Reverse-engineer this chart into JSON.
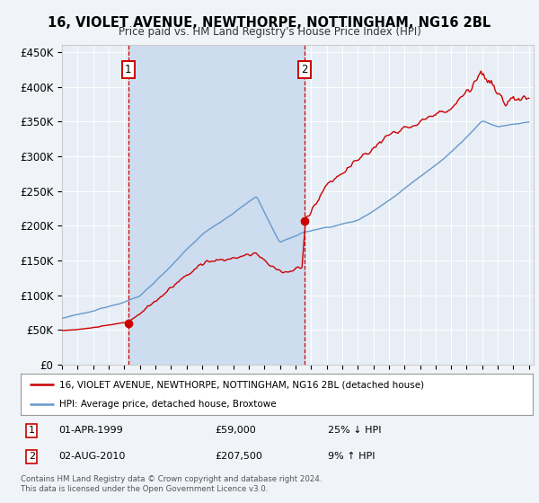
{
  "title": "16, VIOLET AVENUE, NEWTHORPE, NOTTINGHAM, NG16 2BL",
  "subtitle": "Price paid vs. HM Land Registry's House Price Index (HPI)",
  "ylim": [
    0,
    460000
  ],
  "yticks": [
    0,
    50000,
    100000,
    150000,
    200000,
    250000,
    300000,
    350000,
    400000,
    450000
  ],
  "ytick_labels": [
    "£0",
    "£50K",
    "£100K",
    "£150K",
    "£200K",
    "£250K",
    "£300K",
    "£350K",
    "£400K",
    "£450K"
  ],
  "background_color": "#f0f4f8",
  "plot_bg_color": "#e8eef5",
  "shade_color": "#cddcee",
  "red_color": "#cc0000",
  "blue_color": "#6699cc",
  "transaction1": {
    "date_str": "01-APR-1999",
    "year": 1999.25,
    "price": 59000,
    "label": "1",
    "hpi_rel": "25% ↓ HPI"
  },
  "transaction2": {
    "date_str": "02-AUG-2010",
    "year": 2010.58,
    "price": 207500,
    "label": "2",
    "hpi_rel": "9% ↑ HPI"
  },
  "legend_line1": "16, VIOLET AVENUE, NEWTHORPE, NOTTINGHAM, NG16 2BL (detached house)",
  "legend_line2": "HPI: Average price, detached house, Broxtowe",
  "footer": "Contains HM Land Registry data © Crown copyright and database right 2024.\nThis data is licensed under the Open Government Licence v3.0."
}
